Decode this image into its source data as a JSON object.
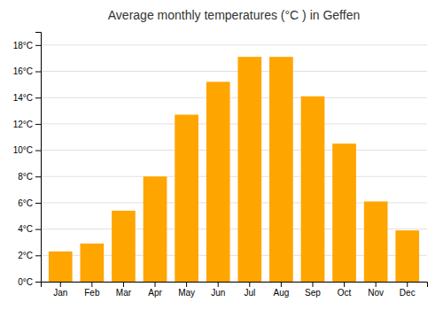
{
  "chart_data": {
    "type": "bar",
    "title": "Average monthly temperatures (°C ) in Geffen",
    "categories": [
      "Jan",
      "Feb",
      "Mar",
      "Apr",
      "May",
      "Jun",
      "Jul",
      "Aug",
      "Sep",
      "Oct",
      "Nov",
      "Dec"
    ],
    "values": [
      2.3,
      2.9,
      5.4,
      8.0,
      12.7,
      15.2,
      17.1,
      17.1,
      14.1,
      10.5,
      6.1,
      3.9
    ],
    "color": "#FFA500",
    "ylim": [
      0,
      19
    ],
    "yticks": [
      {
        "value": 0,
        "label": "0°C"
      },
      {
        "value": 2,
        "label": "2°C"
      },
      {
        "value": 4,
        "label": "4°C"
      },
      {
        "value": 6,
        "label": "6°C"
      },
      {
        "value": 8,
        "label": "8°C"
      },
      {
        "value": 10,
        "label": "10°C"
      },
      {
        "value": 12,
        "label": "12°C"
      },
      {
        "value": 14,
        "label": "14°C"
      },
      {
        "value": 16,
        "label": "16°C"
      },
      {
        "value": 18,
        "label": "18°C"
      }
    ],
    "grid": true
  }
}
